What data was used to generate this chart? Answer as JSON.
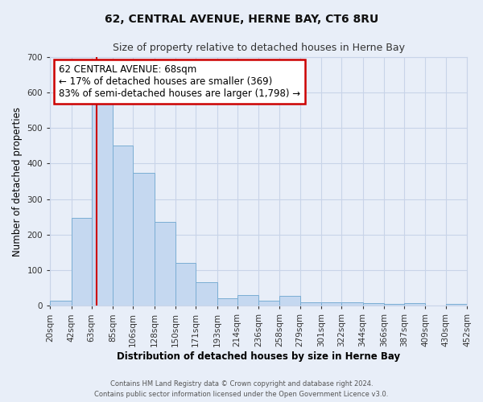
{
  "title": "62, CENTRAL AVENUE, HERNE BAY, CT6 8RU",
  "subtitle": "Size of property relative to detached houses in Herne Bay",
  "xlabel": "Distribution of detached houses by size in Herne Bay",
  "ylabel": "Number of detached properties",
  "footer_line1": "Contains HM Land Registry data © Crown copyright and database right 2024.",
  "footer_line2": "Contains public sector information licensed under the Open Government Licence v3.0.",
  "annotation_title": "62 CENTRAL AVENUE: 68sqm",
  "annotation_line1": "← 17% of detached houses are smaller (369)",
  "annotation_line2": "83% of semi-detached houses are larger (1,798) →",
  "bar_labels": [
    "20sqm",
    "42sqm",
    "63sqm",
    "85sqm",
    "106sqm",
    "128sqm",
    "150sqm",
    "171sqm",
    "193sqm",
    "214sqm",
    "236sqm",
    "258sqm",
    "279sqm",
    "301sqm",
    "322sqm",
    "344sqm",
    "366sqm",
    "387sqm",
    "409sqm",
    "430sqm",
    "452sqm"
  ],
  "bar_values": [
    15,
    247,
    585,
    450,
    375,
    235,
    120,
    67,
    22,
    30,
    14,
    27,
    10,
    10,
    10,
    8,
    5,
    7,
    0,
    5
  ],
  "bar_color": "#c5d8f0",
  "bar_edge_color": "#7baed4",
  "vline_x": 68,
  "bin_edges": [
    20,
    42,
    63,
    85,
    106,
    128,
    150,
    171,
    193,
    214,
    236,
    258,
    279,
    301,
    322,
    344,
    366,
    387,
    409,
    430,
    452
  ],
  "ylim": [
    0,
    700
  ],
  "yticks": [
    0,
    100,
    200,
    300,
    400,
    500,
    600,
    700
  ],
  "annotation_box_color": "#ffffff",
  "annotation_box_edge_color": "#cc0000",
  "vline_color": "#cc0000",
  "grid_color": "#c8d4e8",
  "background_color": "#e8eef8"
}
